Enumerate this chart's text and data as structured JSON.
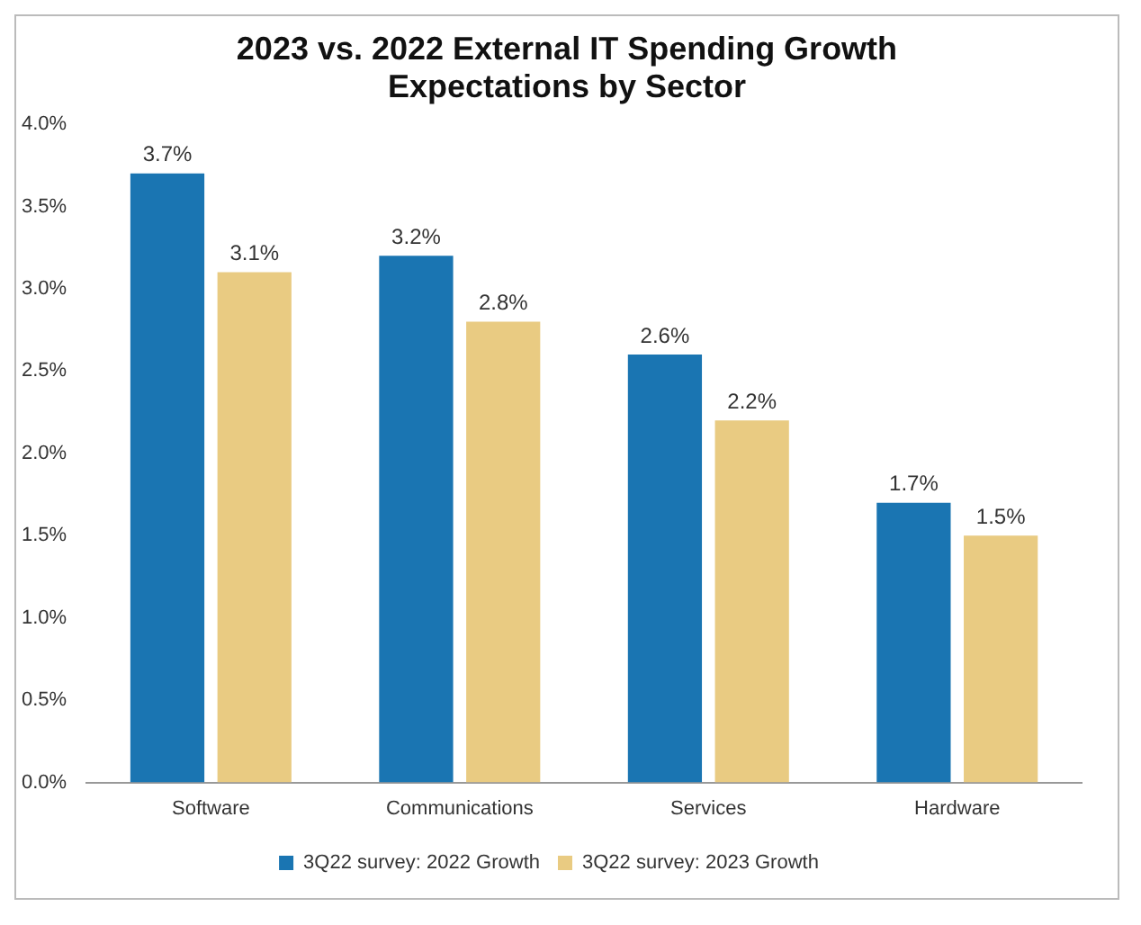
{
  "chart_data": {
    "type": "bar",
    "title": "2023 vs. 2022 External IT Spending Growth Expectations by Sector",
    "categories": [
      "Software",
      "Communications",
      "Services",
      "Hardware"
    ],
    "series": [
      {
        "name": "3Q22 survey: 2022 Growth",
        "color": "#1a75b2",
        "values": [
          3.7,
          3.2,
          2.6,
          1.7
        ],
        "value_labels": [
          "3.7%",
          "3.2%",
          "2.6%",
          "1.7%"
        ]
      },
      {
        "name": "3Q22 survey: 2023 Growth",
        "color": "#e9cb82",
        "values": [
          3.1,
          2.8,
          2.2,
          1.5
        ],
        "value_labels": [
          "3.1%",
          "2.8%",
          "2.2%",
          "1.5%"
        ]
      }
    ],
    "ylim": [
      0,
      4
    ],
    "yticks": [
      {
        "value": 0,
        "label": "0.0%"
      },
      {
        "value": 0.5,
        "label": "0.5%"
      },
      {
        "value": 1,
        "label": "1.0%"
      },
      {
        "value": 1.5,
        "label": "1.5%"
      },
      {
        "value": 2,
        "label": "2.0%"
      },
      {
        "value": 2.5,
        "label": "2.5%"
      },
      {
        "value": 3,
        "label": "3.0%"
      },
      {
        "value": 3.5,
        "label": "3.5%"
      },
      {
        "value": 4,
        "label": "4.0%"
      }
    ],
    "grid": false,
    "legend": "bottom"
  }
}
